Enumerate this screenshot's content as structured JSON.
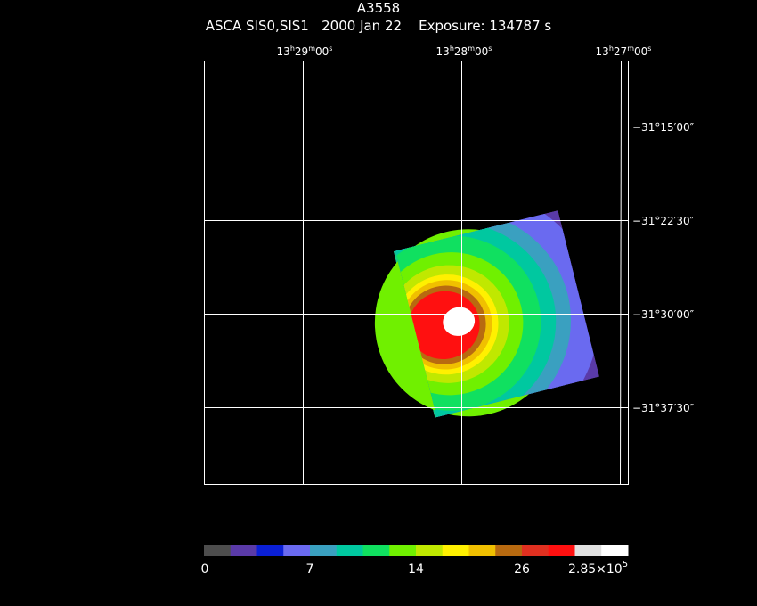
{
  "header": {
    "title": "A3558",
    "subtitle": "ASCA SIS0,SIS1   2000 Jan 22    Exposure: 134787 s"
  },
  "ra_ticks": [
    {
      "h": "13",
      "m": "29",
      "s": "00"
    },
    {
      "h": "13",
      "m": "28",
      "s": "00"
    },
    {
      "h": "13",
      "m": "27",
      "s": "00"
    }
  ],
  "dec_ticks": [
    "−31°15′00″",
    "−31°22′30″",
    "−31°30′00″",
    "−31°37′30″"
  ],
  "colorbar": {
    "colors": [
      "#4d4d4d",
      "#5a3aa8",
      "#0a1fd6",
      "#6a6af0",
      "#3aa0c0",
      "#00c8a0",
      "#10e060",
      "#70f000",
      "#c0e800",
      "#fff000",
      "#f0c000",
      "#b86a10",
      "#e03020",
      "#ff1010",
      "#e0e0e0",
      "#ffffff"
    ],
    "labels": [
      "0",
      "7",
      "14",
      "26",
      "2.85×10"
    ],
    "label_exponent": "5"
  }
}
